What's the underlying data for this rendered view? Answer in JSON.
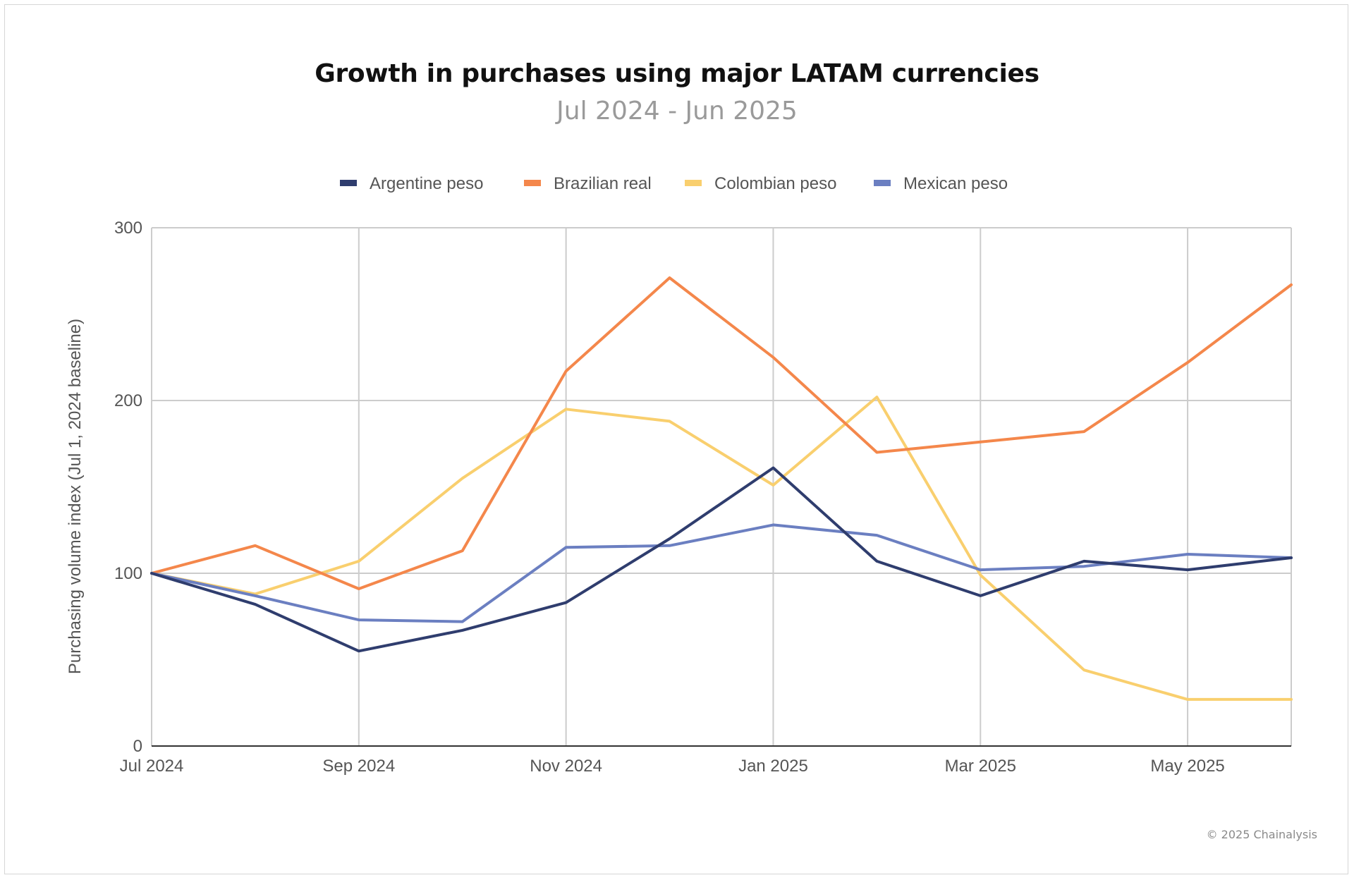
{
  "header": {
    "title": "Growth in purchases using major LATAM currencies",
    "subtitle": "Jul 2024 - Jun 2025"
  },
  "footer": {
    "copyright": "© 2025 Chainalysis"
  },
  "chart_data": {
    "type": "line",
    "title": "Growth in purchases using major LATAM currencies",
    "subtitle": "Jul 2024 - Jun 2025",
    "xlabel": "",
    "ylabel": "Purchasing volume index (Jul 1, 2024 baseline)",
    "x": [
      "2024-07",
      "2024-08",
      "2024-09",
      "2024-10",
      "2024-11",
      "2024-12",
      "2025-01",
      "2025-02",
      "2025-03",
      "2025-04",
      "2025-05",
      "2025-06"
    ],
    "x_tick_labels": [
      "Jul 2024",
      "Sep 2024",
      "Nov 2024",
      "Jan 2025",
      "Mar 2025",
      "May 2025"
    ],
    "x_tick_index": [
      0,
      2,
      4,
      6,
      8,
      10
    ],
    "ylim": [
      0,
      300
    ],
    "y_ticks": [
      0,
      100,
      200,
      300
    ],
    "grid": true,
    "legend_position": "top-center",
    "series": [
      {
        "name": "Argentine peso",
        "color": "#2f3d6e",
        "values": [
          100,
          82,
          55,
          67,
          83,
          120,
          161,
          107,
          87,
          107,
          102,
          109
        ]
      },
      {
        "name": "Brazilian real",
        "color": "#f4874b",
        "values": [
          100,
          116,
          91,
          113,
          217,
          271,
          225,
          170,
          176,
          182,
          222,
          267
        ]
      },
      {
        "name": "Colombian peso",
        "color": "#f9cf6e",
        "values": [
          100,
          88,
          107,
          155,
          195,
          188,
          151,
          202,
          99,
          44,
          27,
          27
        ]
      },
      {
        "name": "Mexican peso",
        "color": "#6b7fc1",
        "values": [
          100,
          87,
          73,
          72,
          115,
          116,
          128,
          122,
          102,
          104,
          111,
          109
        ]
      }
    ]
  }
}
